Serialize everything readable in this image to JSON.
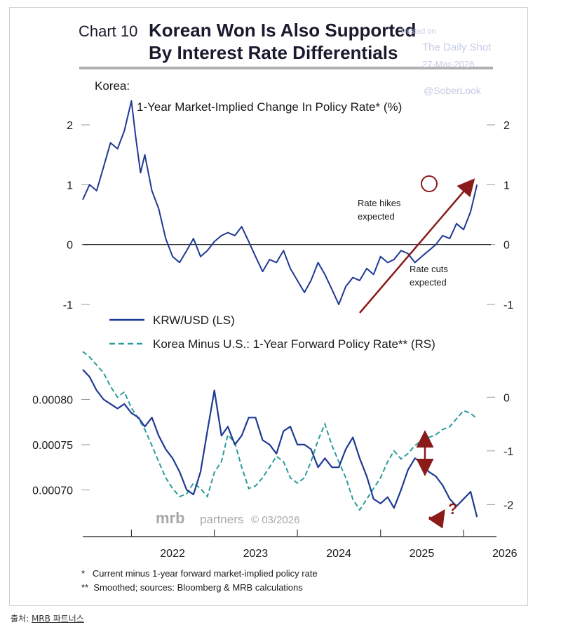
{
  "chart_label": "Chart 10",
  "title_line1": "Korean Won Is Also Supported",
  "title_line2": "By Interest Rate Differentials",
  "watermark": {
    "line1": "Posted on",
    "line2": "The Daily Shot",
    "line3": "27-Mar-2026",
    "line4": "@SoberLook"
  },
  "brand": {
    "mrb": "mrb",
    "partners": "partners",
    "date": "© 03/2026"
  },
  "footnotes": [
    "*   Current minus 1-year forward market-implied policy rate",
    "**  Smoothed; sources: Bloomberg & MRB calculations"
  ],
  "source_caption": {
    "prefix": "출처: ",
    "link": "MRB 파트너스"
  },
  "colors": {
    "navy": "#1f3a93",
    "teal": "#2a9d9a",
    "arrow": "#8b1a1a",
    "axis": "#333333"
  },
  "chart_data": [
    {
      "type": "line",
      "title": "Korea:",
      "subtitle": "1-Year Market-Implied Change In Policy Rate* (%)",
      "ylim": [
        -1.2,
        2.5
      ],
      "yticks": [
        -1,
        0,
        1,
        2
      ],
      "x_range": [
        "2021-06",
        "2026-05"
      ],
      "annotations": [
        "Rate hikes expected",
        "Rate cuts expected"
      ],
      "series": [
        {
          "name": "",
          "points": [
            [
              "2021-06-01",
              0.75
            ],
            [
              "2021-07-01",
              1.0
            ],
            [
              "2021-08-01",
              0.9
            ],
            [
              "2021-09-01",
              1.3
            ],
            [
              "2021-10-01",
              1.7
            ],
            [
              "2021-11-01",
              1.6
            ],
            [
              "2021-12-01",
              1.9
            ],
            [
              "2022-01-01",
              2.4
            ],
            [
              "2022-01-20",
              1.8
            ],
            [
              "2022-02-10",
              1.2
            ],
            [
              "2022-03-01",
              1.5
            ],
            [
              "2022-04-01",
              0.9
            ],
            [
              "2022-05-01",
              0.6
            ],
            [
              "2022-06-01",
              0.1
            ],
            [
              "2022-07-01",
              -0.2
            ],
            [
              "2022-08-01",
              -0.3
            ],
            [
              "2022-09-01",
              -0.1
            ],
            [
              "2022-10-01",
              0.1
            ],
            [
              "2022-11-01",
              -0.2
            ],
            [
              "2022-12-01",
              -0.1
            ],
            [
              "2023-01-01",
              0.05
            ],
            [
              "2023-02-01",
              0.15
            ],
            [
              "2023-03-01",
              0.2
            ],
            [
              "2023-04-01",
              0.15
            ],
            [
              "2023-05-01",
              0.3
            ],
            [
              "2023-06-01",
              0.05
            ],
            [
              "2023-07-01",
              -0.2
            ],
            [
              "2023-08-01",
              -0.45
            ],
            [
              "2023-09-01",
              -0.25
            ],
            [
              "2023-10-01",
              -0.3
            ],
            [
              "2023-11-01",
              -0.1
            ],
            [
              "2023-12-01",
              -0.4
            ],
            [
              "2024-01-01",
              -0.6
            ],
            [
              "2024-02-01",
              -0.8
            ],
            [
              "2024-03-01",
              -0.6
            ],
            [
              "2024-04-01",
              -0.3
            ],
            [
              "2024-05-01",
              -0.5
            ],
            [
              "2024-06-01",
              -0.75
            ],
            [
              "2024-07-01",
              -1.0
            ],
            [
              "2024-08-01",
              -0.7
            ],
            [
              "2024-09-01",
              -0.55
            ],
            [
              "2024-10-01",
              -0.6
            ],
            [
              "2024-11-01",
              -0.4
            ],
            [
              "2024-12-01",
              -0.5
            ],
            [
              "2025-01-01",
              -0.2
            ],
            [
              "2025-02-01",
              -0.3
            ],
            [
              "2025-03-01",
              -0.25
            ],
            [
              "2025-04-01",
              -0.1
            ],
            [
              "2025-05-01",
              -0.15
            ],
            [
              "2025-06-01",
              -0.3
            ],
            [
              "2025-07-01",
              -0.2
            ],
            [
              "2025-08-01",
              -0.1
            ],
            [
              "2025-09-01",
              0.0
            ],
            [
              "2025-10-01",
              0.15
            ],
            [
              "2025-11-01",
              0.1
            ],
            [
              "2025-12-01",
              0.35
            ],
            [
              "2026-01-01",
              0.25
            ],
            [
              "2026-02-01",
              0.55
            ],
            [
              "2026-03-01",
              1.0
            ]
          ]
        }
      ]
    },
    {
      "type": "line",
      "ylim_left": [
        0.00066,
        0.00085
      ],
      "yticks_left": [
        0.0007,
        0.00075,
        0.0008
      ],
      "ytick_labels_left": [
        "0.00070",
        "0.00075",
        "0.00080"
      ],
      "ylim_right": [
        -2.4,
        0.8
      ],
      "yticks_right": [
        -2,
        -1,
        0
      ],
      "xticks": [
        "2022",
        "2023",
        "2024",
        "2025",
        "2026"
      ],
      "x_range": [
        "2021-06",
        "2026-05"
      ],
      "legend": "top",
      "series": [
        {
          "name": "KRW/USD (LS)",
          "style": "solid",
          "points": [
            [
              "2021-06-01",
              0.000833
            ],
            [
              "2021-07-01",
              0.000825
            ],
            [
              "2021-08-01",
              0.00081
            ],
            [
              "2021-09-01",
              0.0008
            ],
            [
              "2021-10-01",
              0.000795
            ],
            [
              "2021-11-01",
              0.00079
            ],
            [
              "2021-12-01",
              0.000795
            ],
            [
              "2022-01-01",
              0.000785
            ],
            [
              "2022-02-01",
              0.00078
            ],
            [
              "2022-03-01",
              0.00077
            ],
            [
              "2022-04-01",
              0.00078
            ],
            [
              "2022-05-01",
              0.00076
            ],
            [
              "2022-06-01",
              0.000745
            ],
            [
              "2022-07-01",
              0.000735
            ],
            [
              "2022-08-01",
              0.00072
            ],
            [
              "2022-09-01",
              0.0007
            ],
            [
              "2022-10-01",
              0.000695
            ],
            [
              "2022-11-01",
              0.00072
            ],
            [
              "2022-12-01",
              0.000765
            ],
            [
              "2023-01-01",
              0.00081
            ],
            [
              "2023-02-01",
              0.00076
            ],
            [
              "2023-03-01",
              0.00077
            ],
            [
              "2023-04-01",
              0.00075
            ],
            [
              "2023-05-01",
              0.00076
            ],
            [
              "2023-06-01",
              0.00078
            ],
            [
              "2023-07-01",
              0.00078
            ],
            [
              "2023-08-01",
              0.000755
            ],
            [
              "2023-09-01",
              0.00075
            ],
            [
              "2023-10-01",
              0.00074
            ],
            [
              "2023-11-01",
              0.000765
            ],
            [
              "2023-12-01",
              0.00077
            ],
            [
              "2024-01-01",
              0.00075
            ],
            [
              "2024-02-01",
              0.00075
            ],
            [
              "2024-03-01",
              0.000745
            ],
            [
              "2024-04-01",
              0.000725
            ],
            [
              "2024-05-01",
              0.000735
            ],
            [
              "2024-06-01",
              0.000725
            ],
            [
              "2024-07-01",
              0.000725
            ],
            [
              "2024-08-01",
              0.000745
            ],
            [
              "2024-09-01",
              0.000758
            ],
            [
              "2024-10-01",
              0.000735
            ],
            [
              "2024-11-01",
              0.000715
            ],
            [
              "2024-12-01",
              0.00069
            ],
            [
              "2025-01-01",
              0.000685
            ],
            [
              "2025-02-01",
              0.000692
            ],
            [
              "2025-03-01",
              0.00068
            ],
            [
              "2025-04-01",
              0.0007
            ],
            [
              "2025-05-01",
              0.000722
            ],
            [
              "2025-06-01",
              0.000735
            ],
            [
              "2025-07-01",
              0.00073
            ],
            [
              "2025-08-01",
              0.00072
            ],
            [
              "2025-09-01",
              0.000715
            ],
            [
              "2025-10-01",
              0.000705
            ],
            [
              "2025-11-01",
              0.00069
            ],
            [
              "2025-12-01",
              0.000682
            ],
            [
              "2026-01-01",
              0.00069
            ],
            [
              "2026-02-01",
              0.000698
            ],
            [
              "2026-03-01",
              0.00067
            ]
          ]
        },
        {
          "name": "Korea Minus U.S.: 1-Year Forward Policy Rate** (RS)",
          "style": "dashed",
          "points": [
            [
              "2021-06-01",
              0.85
            ],
            [
              "2021-07-01",
              0.75
            ],
            [
              "2021-08-01",
              0.6
            ],
            [
              "2021-09-01",
              0.45
            ],
            [
              "2021-10-01",
              0.2
            ],
            [
              "2021-11-01",
              0.0
            ],
            [
              "2021-12-01",
              0.1
            ],
            [
              "2022-01-01",
              -0.2
            ],
            [
              "2022-02-01",
              -0.4
            ],
            [
              "2022-03-01",
              -0.6
            ],
            [
              "2022-04-01",
              -0.9
            ],
            [
              "2022-05-01",
              -1.2
            ],
            [
              "2022-06-01",
              -1.5
            ],
            [
              "2022-07-01",
              -1.7
            ],
            [
              "2022-08-01",
              -1.85
            ],
            [
              "2022-09-01",
              -1.8
            ],
            [
              "2022-10-01",
              -1.6
            ],
            [
              "2022-11-01",
              -1.7
            ],
            [
              "2022-12-01",
              -1.85
            ],
            [
              "2023-01-01",
              -1.4
            ],
            [
              "2023-02-01",
              -1.2
            ],
            [
              "2023-03-01",
              -0.7
            ],
            [
              "2023-04-01",
              -0.85
            ],
            [
              "2023-05-01",
              -1.3
            ],
            [
              "2023-06-01",
              -1.7
            ],
            [
              "2023-07-01",
              -1.65
            ],
            [
              "2023-08-01",
              -1.5
            ],
            [
              "2023-09-01",
              -1.3
            ],
            [
              "2023-10-01",
              -1.1
            ],
            [
              "2023-11-01",
              -1.2
            ],
            [
              "2023-12-01",
              -1.5
            ],
            [
              "2024-01-01",
              -1.6
            ],
            [
              "2024-02-01",
              -1.5
            ],
            [
              "2024-03-01",
              -1.2
            ],
            [
              "2024-04-01",
              -0.8
            ],
            [
              "2024-05-01",
              -0.5
            ],
            [
              "2024-06-01",
              -0.9
            ],
            [
              "2024-07-01",
              -1.2
            ],
            [
              "2024-08-01",
              -1.5
            ],
            [
              "2024-09-01",
              -1.9
            ],
            [
              "2024-10-01",
              -2.1
            ],
            [
              "2024-11-01",
              -1.9
            ],
            [
              "2024-12-01",
              -1.7
            ],
            [
              "2025-01-01",
              -1.5
            ],
            [
              "2025-02-01",
              -1.2
            ],
            [
              "2025-03-01",
              -1.0
            ],
            [
              "2025-04-01",
              -1.15
            ],
            [
              "2025-05-01",
              -1.05
            ],
            [
              "2025-06-01",
              -0.9
            ],
            [
              "2025-07-01",
              -0.8
            ],
            [
              "2025-08-01",
              -0.75
            ],
            [
              "2025-09-01",
              -0.7
            ],
            [
              "2025-10-01",
              -0.6
            ],
            [
              "2025-11-01",
              -0.55
            ],
            [
              "2025-12-01",
              -0.4
            ],
            [
              "2026-01-01",
              -0.25
            ],
            [
              "2026-02-01",
              -0.3
            ],
            [
              "2026-03-01",
              -0.4
            ]
          ]
        }
      ]
    }
  ]
}
